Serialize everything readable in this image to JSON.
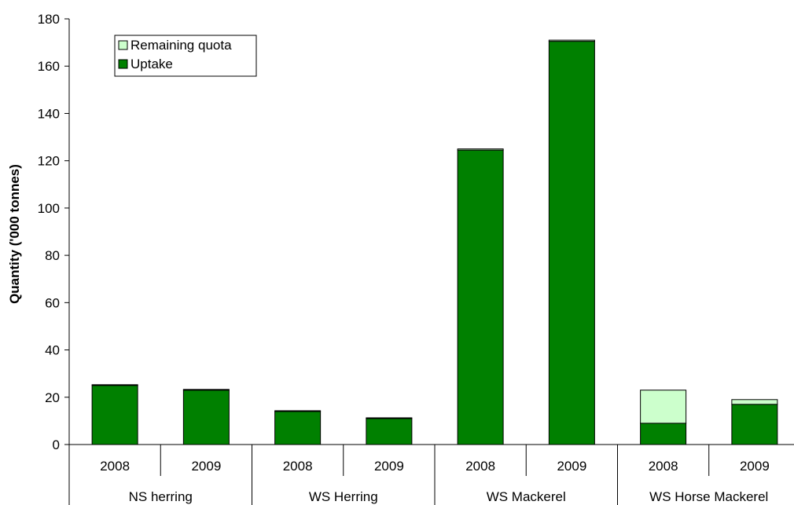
{
  "chart_data": {
    "type": "bar",
    "stacked": true,
    "title": "",
    "xlabel": "",
    "ylabel": "Quantity ('000 tonnes)",
    "ylim": [
      0,
      180
    ],
    "yticks": [
      0,
      20,
      40,
      60,
      80,
      100,
      120,
      140,
      160,
      180
    ],
    "grid": false,
    "legend_position": "top-left",
    "groups": [
      {
        "label": "NS herring",
        "categories": [
          "2008",
          "2009"
        ]
      },
      {
        "label": "WS Herring",
        "categories": [
          "2008",
          "2009"
        ]
      },
      {
        "label": "WS Mackerel",
        "categories": [
          "2008",
          "2009"
        ]
      },
      {
        "label": "WS Horse Mackerel",
        "categories": [
          "2008",
          "2009"
        ]
      }
    ],
    "categories": [
      "2008",
      "2009",
      "2008",
      "2009",
      "2008",
      "2009",
      "2008",
      "2009"
    ],
    "series": [
      {
        "name": "Uptake",
        "color": "#008000",
        "values": [
          25,
          23,
          14,
          11,
          124.5,
          170.5,
          9,
          17
        ]
      },
      {
        "name": "Remaining quota",
        "color": "#ccffcc",
        "values": [
          0.3,
          0.3,
          0.3,
          0.3,
          0.5,
          0.5,
          14,
          2
        ]
      }
    ],
    "legend_order": [
      "Remaining quota",
      "Uptake"
    ]
  }
}
